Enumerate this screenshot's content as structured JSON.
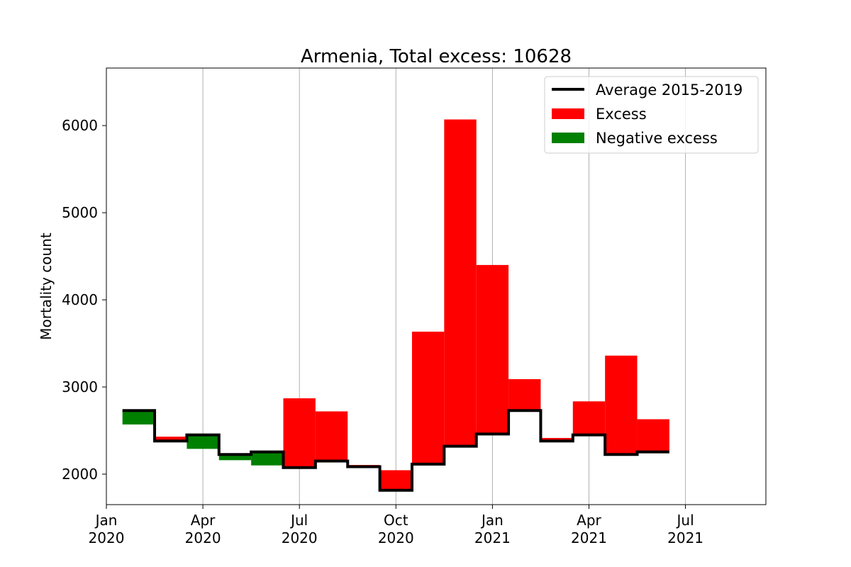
{
  "chart_data": {
    "type": "step-area",
    "title": "Armenia, Total excess: 10628",
    "xlabel": "",
    "ylabel": "Mortality count",
    "x_ticks": [
      {
        "line1": "Jan",
        "line2": "2020",
        "month_index": 0
      },
      {
        "line1": "Apr",
        "line2": "2020",
        "month_index": 3
      },
      {
        "line1": "Jul",
        "line2": "2020",
        "month_index": 6
      },
      {
        "line1": "Oct",
        "line2": "2020",
        "month_index": 9
      },
      {
        "line1": "Jan",
        "line2": "2021",
        "month_index": 12
      },
      {
        "line1": "Apr",
        "line2": "2021",
        "month_index": 15
      },
      {
        "line1": "Jul",
        "line2": "2021",
        "month_index": 18
      }
    ],
    "xlim_months": [
      0,
      20.5
    ],
    "ylim": [
      1650,
      6660
    ],
    "y_ticks": [
      2000,
      3000,
      4000,
      5000,
      6000
    ],
    "grid": "x-only",
    "legend_position": "upper-right",
    "series": [
      {
        "name": "Average 2015-2019",
        "color": "#000000"
      },
      {
        "name": "Excess",
        "color": "#ff0000"
      },
      {
        "name": "Negative excess",
        "color": "#008000"
      }
    ],
    "months": [
      {
        "label": "Jan 2020",
        "average": 2730,
        "actual": 2570
      },
      {
        "label": "Feb 2020",
        "average": 2380,
        "actual": 2430
      },
      {
        "label": "Mar 2020",
        "average": 2450,
        "actual": 2290
      },
      {
        "label": "Apr 2020",
        "average": 2225,
        "actual": 2160
      },
      {
        "label": "May 2020",
        "average": 2255,
        "actual": 2100
      },
      {
        "label": "Jun 2020",
        "average": 2075,
        "actual": 2870
      },
      {
        "label": "Jul 2020",
        "average": 2150,
        "actual": 2720
      },
      {
        "label": "Aug 2020",
        "average": 2085,
        "actual": 2105
      },
      {
        "label": "Sep 2020",
        "average": 1815,
        "actual": 2045
      },
      {
        "label": "Oct 2020",
        "average": 2115,
        "actual": 3635
      },
      {
        "label": "Nov 2020",
        "average": 2320,
        "actual": 6070
      },
      {
        "label": "Dec 2020",
        "average": 2460,
        "actual": 4400
      },
      {
        "label": "Jan 2021",
        "average": 2730,
        "actual": 3090
      },
      {
        "label": "Feb 2021",
        "average": 2380,
        "actual": 2415
      },
      {
        "label": "Mar 2021",
        "average": 2450,
        "actual": 2835
      },
      {
        "label": "Apr 2021",
        "average": 2225,
        "actual": 3360
      },
      {
        "label": "May 2021",
        "average": 2255,
        "actual": 2630
      }
    ]
  }
}
